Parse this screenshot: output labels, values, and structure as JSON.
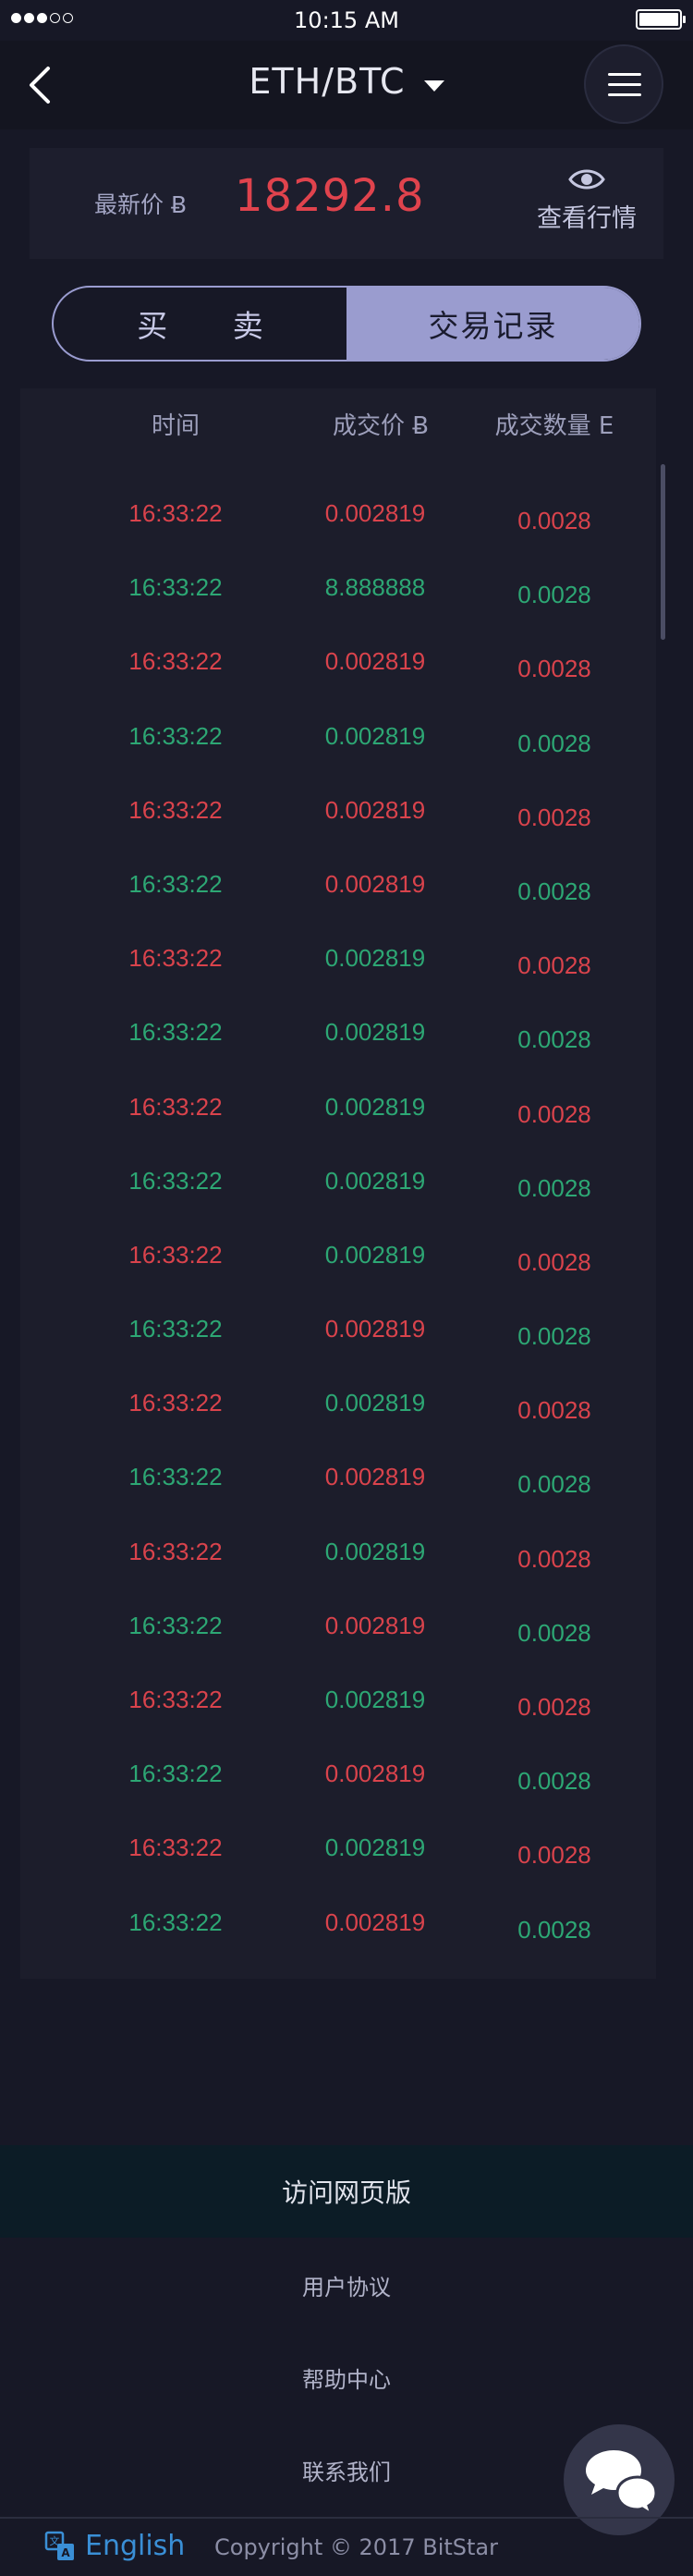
{
  "status_bar": {
    "time": "10:15 AM",
    "signal_dots": 5,
    "signal_filled": 3
  },
  "nav": {
    "pair": "ETH/BTC",
    "back_icon": "chevron-left-icon",
    "menu_icon": "hamburger-icon"
  },
  "price": {
    "label": "最新价 Ƀ",
    "value": "18292.8",
    "view_market_label": "查看行情",
    "view_icon": "eye-icon"
  },
  "tabs": [
    {
      "label": "买 卖",
      "active": false
    },
    {
      "label": "交易记录",
      "active": true
    }
  ],
  "table": {
    "headers": [
      "时间",
      "成交价 Ƀ",
      "成交数量 Ε"
    ],
    "rows": [
      {
        "time": "16:33:22",
        "price": "0.002819",
        "amount": "0.0028",
        "time_color": "red",
        "price_color": "red",
        "amount_color": "red"
      },
      {
        "time": "16:33:22",
        "price": "8.888888",
        "amount": "0.0028",
        "time_color": "green",
        "price_color": "green",
        "amount_color": "green"
      },
      {
        "time": "16:33:22",
        "price": "0.002819",
        "amount": "0.0028",
        "time_color": "red",
        "price_color": "red",
        "amount_color": "red"
      },
      {
        "time": "16:33:22",
        "price": "0.002819",
        "amount": "0.0028",
        "time_color": "green",
        "price_color": "green",
        "amount_color": "green"
      },
      {
        "time": "16:33:22",
        "price": "0.002819",
        "amount": "0.0028",
        "time_color": "red",
        "price_color": "red",
        "amount_color": "red"
      },
      {
        "time": "16:33:22",
        "price": "0.002819",
        "amount": "0.0028",
        "time_color": "green",
        "price_color": "red",
        "amount_color": "green"
      },
      {
        "time": "16:33:22",
        "price": "0.002819",
        "amount": "0.0028",
        "time_color": "red",
        "price_color": "green",
        "amount_color": "red"
      },
      {
        "time": "16:33:22",
        "price": "0.002819",
        "amount": "0.0028",
        "time_color": "green",
        "price_color": "green",
        "amount_color": "green"
      },
      {
        "time": "16:33:22",
        "price": "0.002819",
        "amount": "0.0028",
        "time_color": "red",
        "price_color": "green",
        "amount_color": "red"
      },
      {
        "time": "16:33:22",
        "price": "0.002819",
        "amount": "0.0028",
        "time_color": "green",
        "price_color": "green",
        "amount_color": "green"
      },
      {
        "time": "16:33:22",
        "price": "0.002819",
        "amount": "0.0028",
        "time_color": "red",
        "price_color": "green",
        "amount_color": "red"
      },
      {
        "time": "16:33:22",
        "price": "0.002819",
        "amount": "0.0028",
        "time_color": "green",
        "price_color": "red",
        "amount_color": "green"
      },
      {
        "time": "16:33:22",
        "price": "0.002819",
        "amount": "0.0028",
        "time_color": "red",
        "price_color": "green",
        "amount_color": "red"
      },
      {
        "time": "16:33:22",
        "price": "0.002819",
        "amount": "0.0028",
        "time_color": "green",
        "price_color": "red",
        "amount_color": "green"
      },
      {
        "time": "16:33:22",
        "price": "0.002819",
        "amount": "0.0028",
        "time_color": "red",
        "price_color": "green",
        "amount_color": "red"
      },
      {
        "time": "16:33:22",
        "price": "0.002819",
        "amount": "0.0028",
        "time_color": "green",
        "price_color": "red",
        "amount_color": "green"
      },
      {
        "time": "16:33:22",
        "price": "0.002819",
        "amount": "0.0028",
        "time_color": "red",
        "price_color": "green",
        "amount_color": "red"
      },
      {
        "time": "16:33:22",
        "price": "0.002819",
        "amount": "0.0028",
        "time_color": "green",
        "price_color": "red",
        "amount_color": "green"
      },
      {
        "time": "16:33:22",
        "price": "0.002819",
        "amount": "0.0028",
        "time_color": "red",
        "price_color": "green",
        "amount_color": "red"
      },
      {
        "time": "16:33:22",
        "price": "0.002819",
        "amount": "0.0028",
        "time_color": "green",
        "price_color": "red",
        "amount_color": "green"
      }
    ]
  },
  "footer": {
    "visit_web": "访问网页版",
    "links": [
      "用户协议",
      "帮助中心",
      "联系我们"
    ],
    "chat_icon": "chat-bubbles-icon",
    "language": "English",
    "language_icon": "translate-icon",
    "copyright": "Copyright © 2017 BitStar"
  },
  "colors": {
    "background": "#171826",
    "red": "#d9434c",
    "green": "#2da774",
    "accent": "#9a9ccf",
    "link_blue": "#3a8fd6"
  }
}
